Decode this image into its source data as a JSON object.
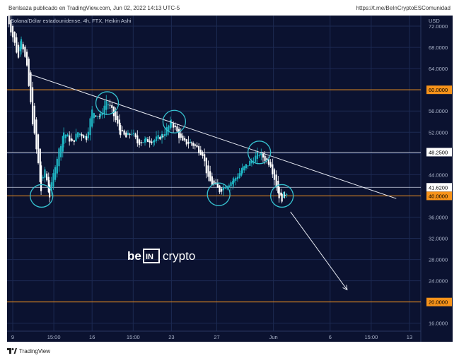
{
  "header": {
    "published_by": "Benlsaza publicado en TradingView.com, Jun 02, 2022 14:13 UTC-5",
    "link": "https://t.me/BeInCryptoESComunidad"
  },
  "footer": {
    "brand": "TradingView"
  },
  "watermark": {
    "left": "be",
    "middle": "IN",
    "right": "crypto"
  },
  "colors": {
    "background": "#0b1230",
    "up_candle": "#1fb6c4",
    "down_candle": "#ffffff",
    "support_line": "#f7931a",
    "circle": "#36c2d0",
    "price_tag_orange": "#f7931a"
  },
  "chart_data": {
    "type": "candlestick",
    "title": "Solana/Dólar estadounidense, 4h, FTX, Heikin Ashi",
    "currency": "USD",
    "y_range": [
      14.5,
      74
    ],
    "yticks": [
      16,
      20,
      24,
      28,
      32,
      36,
      40,
      44,
      48,
      52,
      56,
      60,
      64,
      68,
      72
    ],
    "ytick_labels": [
      "16.0000",
      "20.0000",
      "24.0000",
      "28.0000",
      "32.0000",
      "36.0000",
      "40.0000",
      "44.0000",
      "48.0000",
      "52.0000",
      "56.0000",
      "60.0000",
      "64.0000",
      "68.0000",
      "72.0000"
    ],
    "x_range_days": [
      "2022-05-08T12:00",
      "2022-06-14T00:00"
    ],
    "xticks": [
      {
        "date": "2022-05-09T00:00",
        "label": "9"
      },
      {
        "date": "2022-05-12T15:00",
        "label": "15:00"
      },
      {
        "date": "2022-05-16T00:00",
        "label": "16"
      },
      {
        "date": "2022-05-19T15:00",
        "label": "15:00"
      },
      {
        "date": "2022-05-23T00:00",
        "label": "23"
      },
      {
        "date": "2022-05-27T00:00",
        "label": "27"
      },
      {
        "date": "2022-06-01T00:00",
        "label": "Jun"
      },
      {
        "date": "2022-06-06T00:00",
        "label": "6"
      },
      {
        "date": "2022-06-09T15:00",
        "label": "15:00"
      },
      {
        "date": "2022-06-13T00:00",
        "label": "13"
      }
    ],
    "horizontal_levels": [
      {
        "value": 60,
        "label": "60.0000",
        "style": "orange"
      },
      {
        "value": 48.25,
        "label": "48.2500",
        "style": "white"
      },
      {
        "value": 41.62,
        "label": "41.6200",
        "style": "white"
      },
      {
        "value": 40,
        "label": "40.0000",
        "style": "orange"
      },
      {
        "value": 20,
        "label": "20.0000",
        "style": "orange"
      }
    ],
    "trendline": {
      "from": {
        "date": "2022-05-10T10:00",
        "price": 63
      },
      "to": {
        "date": "2022-06-11T20:00",
        "price": 39.5
      }
    },
    "projection_arrow": {
      "from": {
        "date": "2022-06-02T12:00",
        "price": 37
      },
      "to": {
        "date": "2022-06-07T12:00",
        "price": 22.3
      }
    },
    "circles": [
      {
        "date": "2022-05-11T13:00",
        "price": 40
      },
      {
        "date": "2022-05-17T08:00",
        "price": 57.5
      },
      {
        "date": "2022-05-23T06:00",
        "price": 54
      },
      {
        "date": "2022-05-27T04:00",
        "price": 40.3
      },
      {
        "date": "2022-05-30T18:00",
        "price": 48.2
      },
      {
        "date": "2022-06-01T18:00",
        "price": 40
      }
    ],
    "price_path": [
      [
        "2022-05-08T12:00",
        74
      ],
      [
        "2022-05-09T00:00",
        70
      ],
      [
        "2022-05-09T12:00",
        66
      ],
      [
        "2022-05-09T18:00",
        70
      ],
      [
        "2022-05-10T06:00",
        64
      ],
      [
        "2022-05-10T18:00",
        54
      ],
      [
        "2022-05-11T06:00",
        46
      ],
      [
        "2022-05-11T12:00",
        41
      ],
      [
        "2022-05-11T20:00",
        45
      ],
      [
        "2022-05-12T06:00",
        40
      ],
      [
        "2022-05-12T18:00",
        46
      ],
      [
        "2022-05-13T12:00",
        52
      ],
      [
        "2022-05-14T06:00",
        50
      ],
      [
        "2022-05-14T18:00",
        52
      ],
      [
        "2022-05-15T12:00",
        51
      ],
      [
        "2022-05-16T00:00",
        56
      ],
      [
        "2022-05-16T18:00",
        55
      ],
      [
        "2022-05-17T06:00",
        58
      ],
      [
        "2022-05-17T18:00",
        56
      ],
      [
        "2022-05-18T12:00",
        52
      ],
      [
        "2022-05-19T00:00",
        51
      ],
      [
        "2022-05-19T12:00",
        52
      ],
      [
        "2022-05-20T00:00",
        50
      ],
      [
        "2022-05-20T18:00",
        50.5
      ],
      [
        "2022-05-21T12:00",
        50.5
      ],
      [
        "2022-05-22T06:00",
        51.5
      ],
      [
        "2022-05-23T00:00",
        54
      ],
      [
        "2022-05-23T12:00",
        52
      ],
      [
        "2022-05-24T00:00",
        50
      ],
      [
        "2022-05-24T18:00",
        50
      ],
      [
        "2022-05-25T06:00",
        49
      ],
      [
        "2022-05-25T18:00",
        48
      ],
      [
        "2022-05-26T06:00",
        43
      ],
      [
        "2022-05-26T18:00",
        42
      ],
      [
        "2022-05-27T06:00",
        41
      ],
      [
        "2022-05-27T18:00",
        42
      ],
      [
        "2022-05-28T12:00",
        43
      ],
      [
        "2022-05-29T06:00",
        45
      ],
      [
        "2022-05-29T18:00",
        46
      ],
      [
        "2022-05-30T06:00",
        47
      ],
      [
        "2022-05-30T18:00",
        48
      ],
      [
        "2022-05-31T06:00",
        47
      ],
      [
        "2022-05-31T18:00",
        46
      ],
      [
        "2022-06-01T06:00",
        42
      ],
      [
        "2022-06-01T12:00",
        40
      ],
      [
        "2022-06-01T18:00",
        39.5
      ],
      [
        "2022-06-02T00:00",
        40.5
      ],
      [
        "2022-06-02T08:00",
        41
      ]
    ]
  }
}
